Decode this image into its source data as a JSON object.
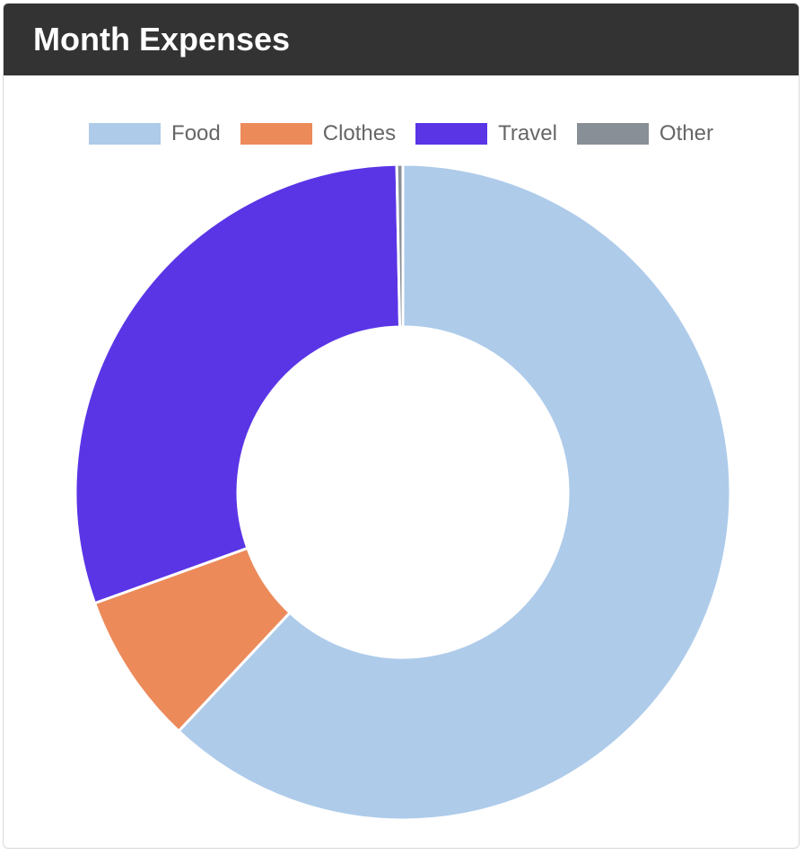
{
  "header": {
    "title": "Month Expenses"
  },
  "chart_data": {
    "type": "pie",
    "variant": "doughnut",
    "title": "Month Expenses",
    "legend_position": "top",
    "categories": [
      "Food",
      "Clothes",
      "Travel",
      "Other"
    ],
    "values": [
      62.0,
      7.5,
      30.2,
      0.3
    ],
    "colors": [
      "#aecbea",
      "#ec8a5a",
      "#5a35e6",
      "#888f96"
    ]
  }
}
